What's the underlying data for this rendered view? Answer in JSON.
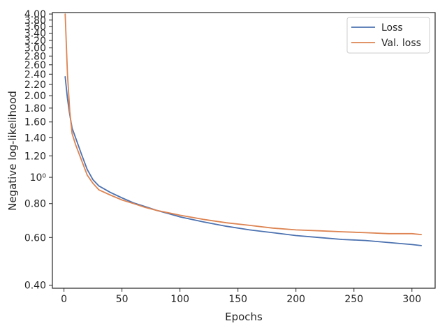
{
  "chart_data": {
    "type": "line",
    "xlabel": "Epochs",
    "ylabel": "Negative log-likelihood",
    "xlim": [
      -10,
      320
    ],
    "ylim": [
      0.39,
      4.05
    ],
    "yscale": "log",
    "xticks": [
      0,
      50,
      100,
      150,
      200,
      250,
      300
    ],
    "xtick_labels": [
      "0",
      "50",
      "100",
      "150",
      "200",
      "250",
      "300"
    ],
    "yticks": [
      0.4,
      0.6,
      0.8,
      1.0,
      1.2,
      1.4,
      1.6,
      1.8,
      2.0,
      2.2,
      2.4,
      2.6,
      2.8,
      3.0,
      3.2,
      3.4,
      3.6,
      3.8,
      4.0
    ],
    "ytick_labels": [
      "0.40",
      "0.60",
      "0.80",
      "10⁰",
      "1.20",
      "1.40",
      "1.60",
      "1.80",
      "2.00",
      "2.20",
      "2.40",
      "2.60",
      "2.80",
      "3.00",
      "3.20",
      "3.40",
      "3.60",
      "3.80",
      "4.00"
    ],
    "grid": false,
    "legend_position": "top-right",
    "series": [
      {
        "name": "Loss",
        "color": "#4c72b0",
        "x": [
          1,
          3,
          5,
          7,
          10,
          15,
          20,
          25,
          30,
          40,
          50,
          60,
          70,
          80,
          90,
          100,
          120,
          140,
          160,
          180,
          200,
          220,
          240,
          260,
          280,
          300,
          308
        ],
        "y": [
          2.35,
          1.95,
          1.7,
          1.52,
          1.4,
          1.22,
          1.07,
          0.98,
          0.93,
          0.88,
          0.84,
          0.805,
          0.78,
          0.755,
          0.735,
          0.715,
          0.685,
          0.66,
          0.64,
          0.625,
          0.61,
          0.6,
          0.59,
          0.585,
          0.575,
          0.565,
          0.56
        ]
      },
      {
        "name": "Val. loss",
        "color": "#dd8452",
        "x": [
          1,
          3,
          5,
          7,
          10,
          15,
          20,
          25,
          30,
          40,
          50,
          60,
          70,
          80,
          90,
          100,
          120,
          140,
          160,
          180,
          200,
          220,
          240,
          260,
          280,
          300,
          308
        ],
        "y": [
          4.0,
          2.4,
          1.75,
          1.45,
          1.32,
          1.16,
          1.02,
          0.95,
          0.9,
          0.86,
          0.825,
          0.8,
          0.775,
          0.755,
          0.74,
          0.725,
          0.7,
          0.68,
          0.665,
          0.65,
          0.64,
          0.635,
          0.63,
          0.625,
          0.62,
          0.62,
          0.615
        ]
      }
    ]
  }
}
